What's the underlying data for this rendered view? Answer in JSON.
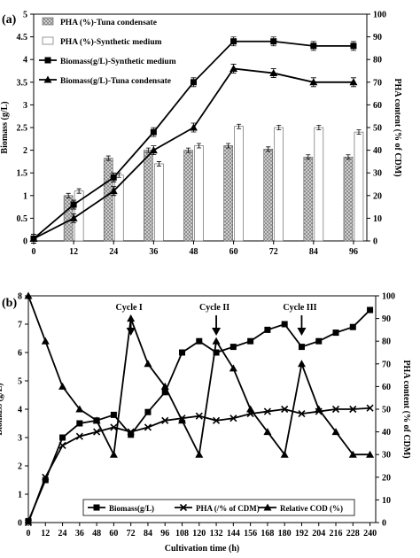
{
  "figure": {
    "colors": {
      "ink": "#000000",
      "bar_tuna": "#d6d6d6",
      "bar_synthetic": "#ffffff",
      "background": "#ffffff"
    }
  },
  "chart_data": [
    {
      "panel_label": "(a)",
      "type": "bar+line",
      "xlabel": "",
      "ylabel": "Biomass (g/L)",
      "y2label": "PHA content (% of CDM)",
      "x_ticks": [
        0,
        12,
        24,
        36,
        48,
        60,
        72,
        84,
        96
      ],
      "xlim": [
        0,
        100
      ],
      "ylim": [
        0,
        5
      ],
      "y_ticks": [
        "0",
        "0.5",
        "1",
        "1.5",
        "2",
        "2.5",
        "3",
        "3.5",
        "4",
        "4.5",
        "5"
      ],
      "y2lim": [
        0,
        100
      ],
      "y2_ticks": [
        "0",
        "10",
        "20",
        "30",
        "40",
        "50",
        "60",
        "70",
        "80",
        "90",
        "100"
      ],
      "legend": "top-left",
      "series": [
        {
          "name": "PHA (%)-Tuna condensate",
          "kind": "bar",
          "axis": "right",
          "x": [
            12,
            24,
            36,
            48,
            60,
            72,
            84,
            96
          ],
          "values": [
            20,
            36.5,
            40,
            40,
            42,
            40.5,
            37,
            37
          ]
        },
        {
          "name": "PHA (%)-Synthetic medium",
          "kind": "bar",
          "axis": "right",
          "x": [
            12,
            24,
            36,
            48,
            60,
            72,
            84,
            96
          ],
          "values": [
            22,
            29,
            34,
            42,
            50.5,
            50,
            50,
            48
          ]
        },
        {
          "name": "Biomass(g/L)-Synthetic medium",
          "kind": "line",
          "marker": "square",
          "axis": "left",
          "x": [
            0,
            12,
            24,
            36,
            48,
            60,
            72,
            84,
            96
          ],
          "values": [
            0.05,
            0.8,
            1.4,
            2.4,
            3.5,
            4.4,
            4.4,
            4.3,
            4.3
          ]
        },
        {
          "name": "Biomass(g/L)-Tuna condensate",
          "kind": "line",
          "marker": "triangle",
          "axis": "left",
          "x": [
            0,
            12,
            24,
            36,
            48,
            60,
            72,
            84,
            96
          ],
          "values": [
            0.05,
            0.5,
            1.1,
            2.0,
            2.5,
            3.8,
            3.7,
            3.5,
            3.5
          ]
        }
      ]
    },
    {
      "panel_label": "(b)",
      "type": "line",
      "xlabel": "Cultivation time (h)",
      "ylabel": "Biomass (g/L)",
      "y2label": "PHA content (% of CDM)",
      "x_ticks": [
        0,
        12,
        24,
        36,
        48,
        60,
        72,
        84,
        96,
        108,
        120,
        132,
        144,
        156,
        168,
        180,
        192,
        204,
        216,
        228,
        240
      ],
      "xlim": [
        0,
        244
      ],
      "ylim": [
        0,
        8
      ],
      "y_ticks": [
        "0",
        "1",
        "2",
        "3",
        "4",
        "5",
        "6",
        "7",
        "8"
      ],
      "y2lim": [
        0,
        100
      ],
      "y2_ticks": [
        "0",
        "10",
        "20",
        "30",
        "40",
        "50",
        "60",
        "70",
        "80",
        "90",
        "100"
      ],
      "legend": "bottom",
      "annotations": [
        {
          "text": "Cycle I",
          "x": 72
        },
        {
          "text": "Cycle II",
          "x": 132
        },
        {
          "text": "Cycle III",
          "x": 192
        }
      ],
      "series": [
        {
          "name": "Biomass(g/L)",
          "marker": "square",
          "axis": "left",
          "x": [
            0,
            12,
            24,
            36,
            48,
            60,
            72,
            84,
            96,
            108,
            120,
            132,
            144,
            156,
            168,
            180,
            192,
            204,
            216,
            228,
            240
          ],
          "values": [
            0.05,
            1.5,
            3.0,
            3.5,
            3.6,
            3.8,
            3.1,
            3.9,
            4.6,
            6.0,
            6.4,
            6.0,
            6.2,
            6.4,
            6.8,
            7.0,
            6.2,
            6.4,
            6.7,
            6.9,
            7.5
          ]
        },
        {
          "name": "PHA (/% of CDM)",
          "marker": "x",
          "axis": "right",
          "x": [
            0,
            12,
            24,
            36,
            48,
            60,
            72,
            84,
            96,
            108,
            120,
            132,
            144,
            156,
            168,
            180,
            192,
            204,
            216,
            228,
            240
          ],
          "values": [
            0,
            20,
            34,
            38,
            40,
            42,
            40,
            42,
            45,
            46,
            47,
            45,
            46,
            48,
            49,
            50,
            48,
            49,
            50,
            50,
            50.5
          ]
        },
        {
          "name": "Relative COD (%)",
          "marker": "triangle",
          "axis": "right",
          "x": [
            0,
            12,
            24,
            36,
            48,
            60,
            72,
            84,
            96,
            108,
            120,
            132,
            144,
            156,
            168,
            180,
            192,
            204,
            216,
            228,
            240
          ],
          "values": [
            100,
            80,
            60,
            50,
            45,
            30,
            90,
            70,
            60,
            45,
            30,
            80,
            68,
            50,
            40,
            30,
            70,
            50,
            40,
            30,
            30
          ]
        }
      ]
    }
  ]
}
